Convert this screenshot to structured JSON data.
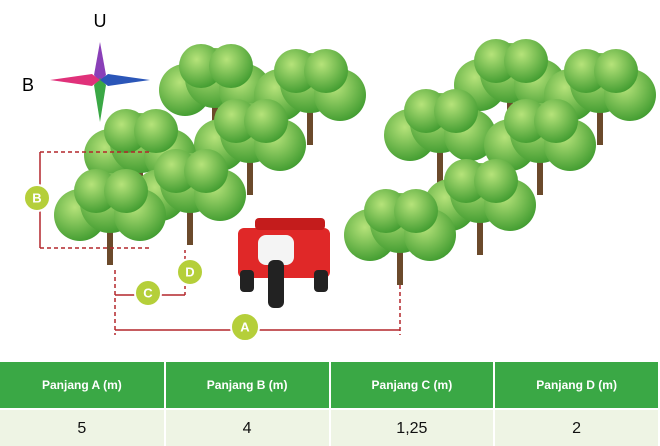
{
  "compass": {
    "north": "U",
    "west": "B"
  },
  "dimensions": {
    "a": "A",
    "b": "B",
    "c": "C",
    "d": "D"
  },
  "table": {
    "header": [
      "Panjang A (m)",
      "Panjang B (m)",
      "Panjang C (m)",
      "Panjang D (m)"
    ],
    "rows": [
      [
        "5",
        "4",
        "1,25",
        "2"
      ]
    ]
  }
}
